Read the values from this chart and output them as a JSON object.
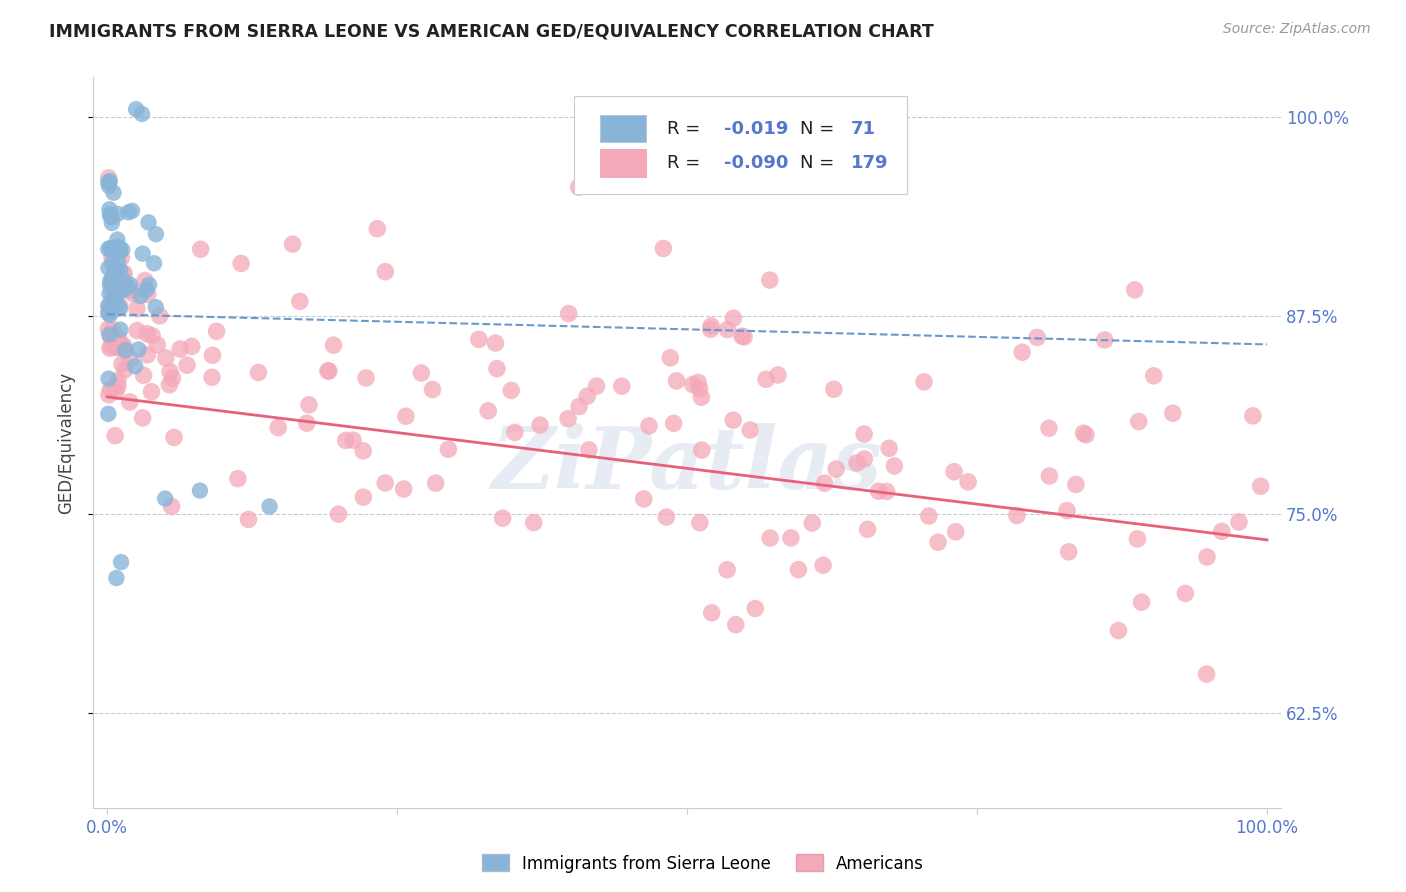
{
  "title": "IMMIGRANTS FROM SIERRA LEONE VS AMERICAN GED/EQUIVALENCY CORRELATION CHART",
  "source": "Source: ZipAtlas.com",
  "ylabel": "GED/Equivalency",
  "legend_label_blue": "Immigrants from Sierra Leone",
  "legend_label_pink": "Americans",
  "R_blue": -0.019,
  "N_blue": 71,
  "R_pink": -0.09,
  "N_pink": 179,
  "xlim": [
    -0.012,
    1.012
  ],
  "ylim": [
    0.565,
    1.025
  ],
  "yticks": [
    0.625,
    0.75,
    0.875,
    1.0
  ],
  "ytick_labels": [
    "62.5%",
    "75.0%",
    "87.5%",
    "100.0%"
  ],
  "xtick_labels": [
    "0.0%",
    "100.0%"
  ],
  "blue_color": "#88b4d8",
  "pink_color": "#f4a8b8",
  "blue_line_color": "#6699cc",
  "pink_line_color": "#e8607a",
  "blue_line_intercept": 0.876,
  "blue_line_end": 0.857,
  "pink_line_intercept": 0.824,
  "pink_line_end": 0.734,
  "watermark": "ZiPatlas",
  "grid_color": "#cccccc",
  "grid_style": "--",
  "title_color": "#222222",
  "source_color": "#999999",
  "tick_color": "#5577cc",
  "legend_R_color": "#222222",
  "legend_N_color": "#222222",
  "legend_val_color": "#5577cc"
}
